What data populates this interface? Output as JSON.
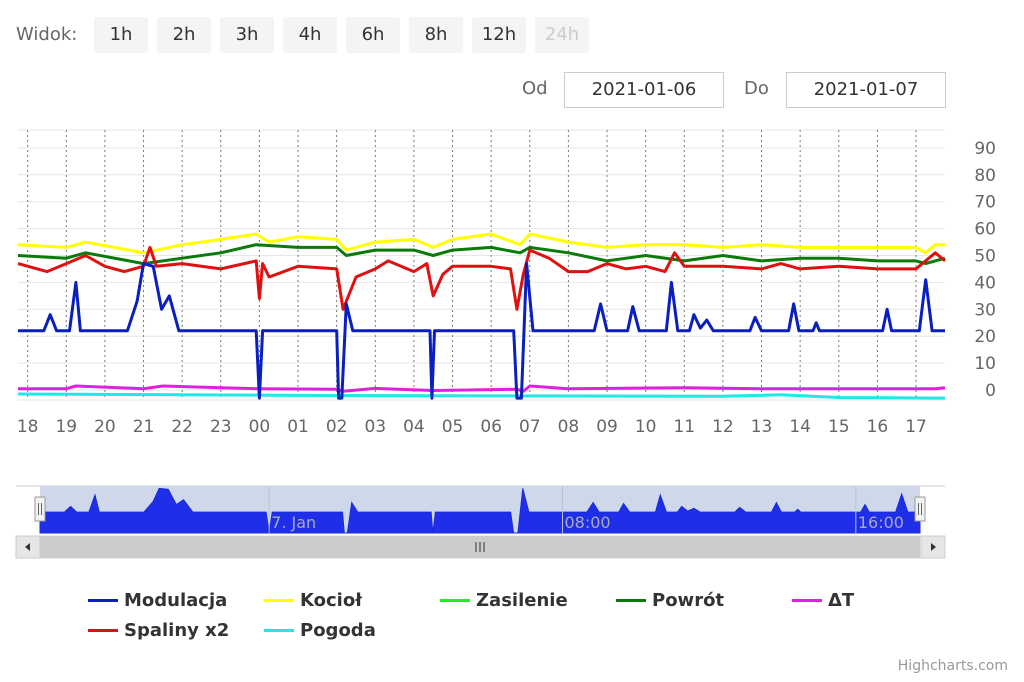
{
  "range_selector": {
    "label": "Widok:",
    "buttons": [
      {
        "label": "1h",
        "enabled": true
      },
      {
        "label": "2h",
        "enabled": true
      },
      {
        "label": "3h",
        "enabled": true
      },
      {
        "label": "4h",
        "enabled": true
      },
      {
        "label": "6h",
        "enabled": true
      },
      {
        "label": "8h",
        "enabled": true
      },
      {
        "label": "12h",
        "enabled": true
      },
      {
        "label": "24h",
        "enabled": false
      }
    ],
    "from_label": "Od",
    "from_value": "2021-01-06",
    "to_label": "Do",
    "to_value": "2021-01-07"
  },
  "chart_data": {
    "type": "line",
    "x_range": [
      "2021-01-06T17:45",
      "2021-01-07T17:45"
    ],
    "x_tick_labels": [
      "18",
      "19",
      "20",
      "21",
      "22",
      "23",
      "00",
      "01",
      "02",
      "03",
      "04",
      "05",
      "06",
      "07",
      "08",
      "09",
      "10",
      "11",
      "12",
      "13",
      "14",
      "15",
      "16",
      "17"
    ],
    "y_tick_labels": [
      "0",
      "10",
      "20",
      "30",
      "40",
      "50",
      "60",
      "70",
      "80",
      "90"
    ],
    "ylim": [
      -3,
      97
    ],
    "grid": true,
    "legend_placement": "bottom",
    "series": [
      {
        "name": "Modulacja",
        "color": "#0a1fc0",
        "points": [
          [
            "06T17:45",
            22
          ],
          [
            "06T18:25",
            22
          ],
          [
            "06T18:35",
            28
          ],
          [
            "06T18:45",
            22
          ],
          [
            "06T19:05",
            22
          ],
          [
            "06T19:15",
            40
          ],
          [
            "06T19:22",
            22
          ],
          [
            "06T20:35",
            22
          ],
          [
            "06T20:50",
            33
          ],
          [
            "06T21:00",
            47
          ],
          [
            "06T21:15",
            46
          ],
          [
            "06T21:28",
            30
          ],
          [
            "06T21:40",
            35
          ],
          [
            "06T21:55",
            22
          ],
          [
            "06T23:55",
            22
          ],
          [
            "06T23:59",
            -3
          ],
          [
            "06T00:04",
            -3
          ]
        ]
      },
      {
        "name": "Kocioł",
        "color": "#ffff00",
        "points": []
      },
      {
        "name": "Zasilenie",
        "color": "#22ee22",
        "points": []
      },
      {
        "name": "Powrót",
        "color": "#0a7a0a",
        "points": []
      },
      {
        "name": "ΔT",
        "color": "#e020e0",
        "points": []
      },
      {
        "name": "Spaliny x2",
        "color": "#e01010",
        "points": []
      },
      {
        "name": "Pogoda",
        "color": "#20e8e8",
        "points": []
      }
    ]
  },
  "navigator": {
    "labels": [
      "7. Jan",
      "08:00",
      "16:00"
    ],
    "series_color": "#1f2ee8",
    "mask_color": "#cfd8ea"
  },
  "credits": "Highcharts.com"
}
